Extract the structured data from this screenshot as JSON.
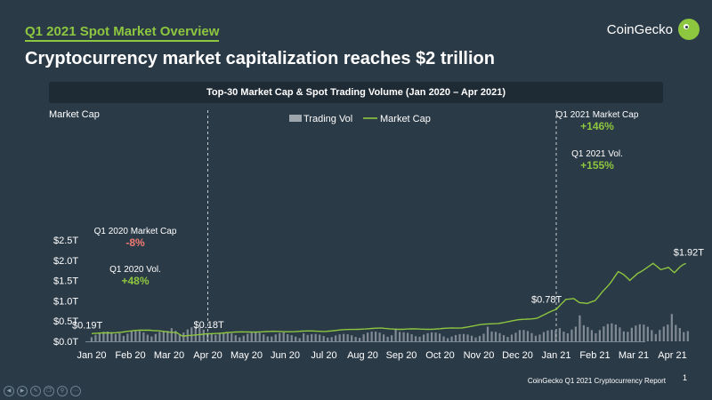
{
  "header": {
    "kicker": "Q1 2021 Spot Market Overview",
    "headline": "Cryptocurrency market capitalization reaches $2 trillion",
    "brand": "CoinGecko",
    "brand_icon": "gecko-logo-icon"
  },
  "footer": {
    "report": "CoinGecko Q1 2021 Cryptocurrency Report",
    "page": "1",
    "controls": [
      "prev-icon",
      "next-icon",
      "pen-icon",
      "copy-icon",
      "search-icon",
      "more-icon"
    ]
  },
  "colors": {
    "background": "#2b3a47",
    "banner": "#1e2a34",
    "market_cap_line": "#8dc63f",
    "volume_bars": "#9ea6ad",
    "positive": "#8dc63f",
    "negative": "#f07b72",
    "divider": "#c4ccd2"
  },
  "chart_data": {
    "type": "line",
    "title": "Top-30 Market Cap & Spot Trading Volume (Jan 2020 – Apr 2021)",
    "ylabel": "Market Cap",
    "ylim": [
      0,
      2.5
    ],
    "yticks": [
      {
        "value": 0,
        "label": "$0.0T"
      },
      {
        "value": 0.5,
        "label": "$0.5T"
      },
      {
        "value": 1.0,
        "label": "$1.0T"
      },
      {
        "value": 1.5,
        "label": "$1.5T"
      },
      {
        "value": 2.0,
        "label": "$2.0T"
      },
      {
        "value": 2.5,
        "label": "$2.5T"
      }
    ],
    "xticks": [
      "Jan 20",
      "Feb 20",
      "Mar 20",
      "Apr 20",
      "May 20",
      "Jun 20",
      "Jul 20",
      "Aug 20",
      "Sep 20",
      "Oct 20",
      "Nov 20",
      "Dec 20",
      "Jan 21",
      "Feb 21",
      "Mar 21",
      "Apr 21"
    ],
    "grid": false,
    "legend": {
      "position": "top-center",
      "items": [
        {
          "label": "Trading Vol",
          "style": "bar"
        },
        {
          "label": "Market Cap",
          "style": "line"
        }
      ]
    },
    "series": [
      {
        "name": "Market Cap",
        "points": [
          [
            0,
            0.19
          ],
          [
            0.25,
            0.2
          ],
          [
            0.5,
            0.21
          ],
          [
            0.75,
            0.23
          ],
          [
            1.0,
            0.25
          ],
          [
            1.25,
            0.27
          ],
          [
            1.5,
            0.28
          ],
          [
            1.75,
            0.26
          ],
          [
            2.0,
            0.22
          ],
          [
            2.2,
            0.21
          ],
          [
            2.35,
            0.13
          ],
          [
            2.5,
            0.15
          ],
          [
            2.75,
            0.16
          ],
          [
            3.0,
            0.18
          ],
          [
            3.25,
            0.2
          ],
          [
            3.5,
            0.22
          ],
          [
            4.0,
            0.23
          ],
          [
            4.5,
            0.24
          ],
          [
            5.0,
            0.24
          ],
          [
            5.5,
            0.25
          ],
          [
            6.0,
            0.25
          ],
          [
            6.5,
            0.28
          ],
          [
            7.0,
            0.31
          ],
          [
            7.5,
            0.32
          ],
          [
            8.0,
            0.3
          ],
          [
            8.5,
            0.3
          ],
          [
            9.0,
            0.31
          ],
          [
            9.5,
            0.33
          ],
          [
            10.0,
            0.4
          ],
          [
            10.5,
            0.45
          ],
          [
            11.0,
            0.52
          ],
          [
            11.5,
            0.58
          ],
          [
            12.0,
            0.78
          ],
          [
            12.25,
            1.05
          ],
          [
            12.45,
            1.07
          ],
          [
            12.6,
            0.95
          ],
          [
            12.8,
            0.92
          ],
          [
            13.0,
            1.0
          ],
          [
            13.2,
            1.25
          ],
          [
            13.4,
            1.45
          ],
          [
            13.6,
            1.7
          ],
          [
            13.75,
            1.62
          ],
          [
            13.9,
            1.5
          ],
          [
            14.1,
            1.7
          ],
          [
            14.3,
            1.8
          ],
          [
            14.5,
            1.9
          ],
          [
            14.7,
            1.75
          ],
          [
            14.9,
            1.84
          ],
          [
            15.05,
            1.72
          ],
          [
            15.2,
            1.85
          ],
          [
            15.35,
            1.92
          ]
        ]
      },
      {
        "name": "Trading Vol",
        "note": "relative daily spot trading volume shown as bars at the chart base",
        "monthly_relative": [
          0.6,
          0.65,
          0.9,
          0.55,
          0.55,
          0.45,
          0.45,
          0.6,
          0.55,
          0.45,
          0.6,
          0.7,
          1.0,
          1.1,
          1.05,
          1.1
        ]
      }
    ],
    "data_labels": [
      {
        "text": "$0.19T",
        "x": 0,
        "y": 0.19
      },
      {
        "text": "$0.18T",
        "x": 3.0,
        "y": 0.18
      },
      {
        "text": "$0.78T",
        "x": 12.0,
        "y": 0.78
      },
      {
        "text": "$1.92T",
        "x": 15.35,
        "y": 1.92
      }
    ],
    "dividers": [
      3.0,
      12.0
    ],
    "annotations": [
      {
        "label": "Q1 2020 Market Cap",
        "value": "-8%",
        "tone": "negative"
      },
      {
        "label": "Q1 2020 Vol.",
        "value": "+48%",
        "tone": "positive"
      },
      {
        "label": "Q1 2021 Market Cap",
        "value": "+146%",
        "tone": "positive"
      },
      {
        "label": "Q1 2021 Vol.",
        "value": "+155%",
        "tone": "positive"
      }
    ]
  }
}
